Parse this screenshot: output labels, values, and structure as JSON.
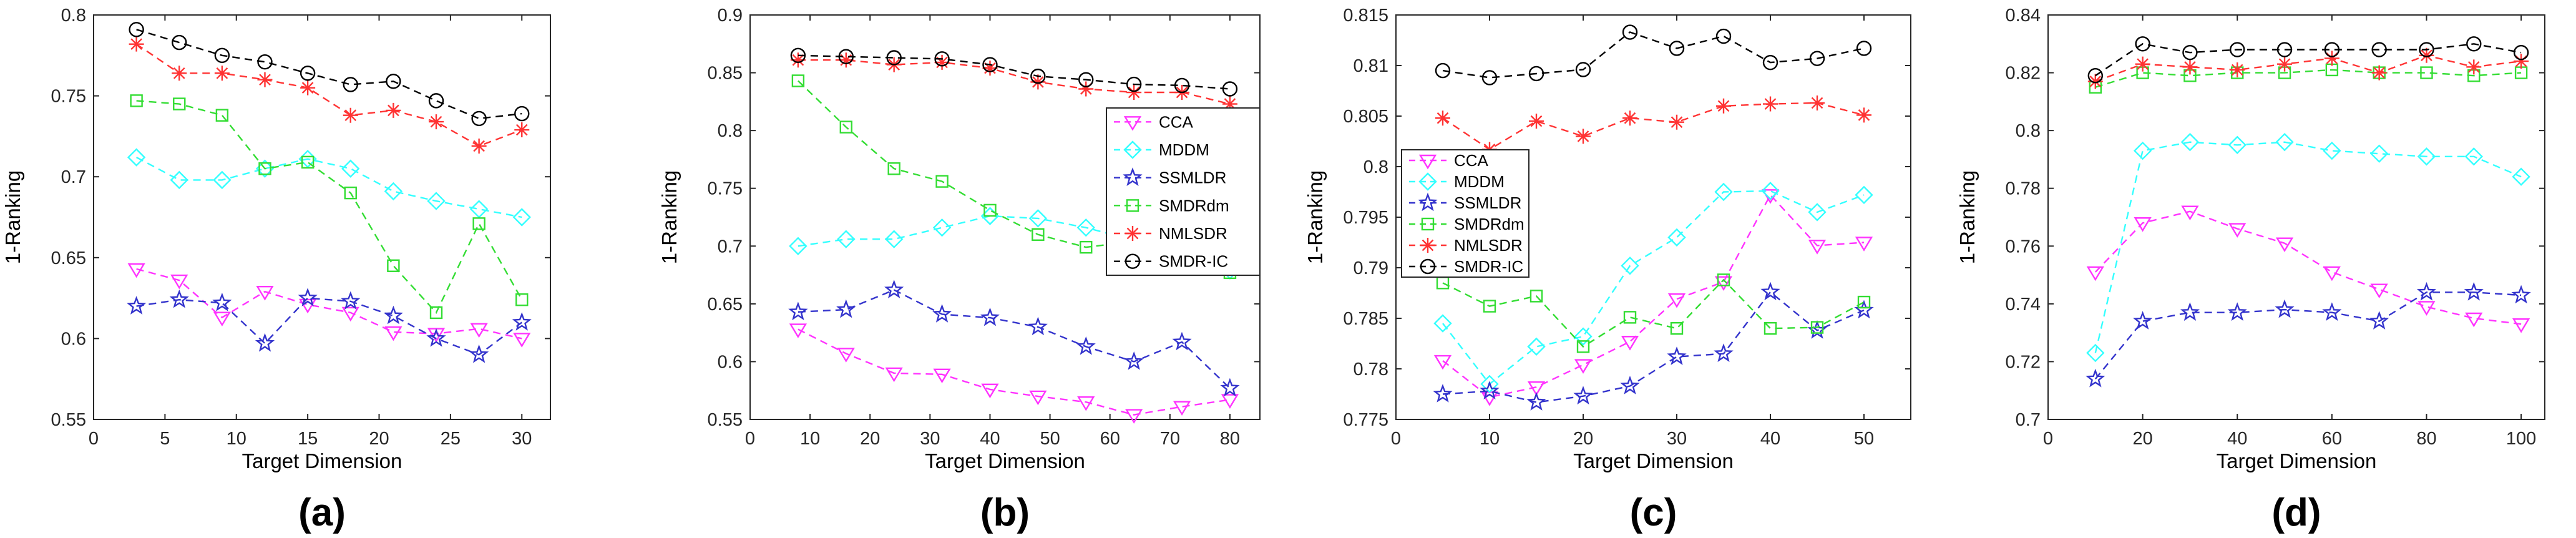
{
  "figure": {
    "markers": {
      "CCA": "triangle-down",
      "MDDM": "diamond",
      "SSMLDR": "star",
      "SMDRdm": "square",
      "NMLSDR": "asterisk",
      "SMDR-IC": "circle"
    },
    "colors": {
      "CCA": "#ff33ff",
      "MDDM": "#33ffff",
      "SSMLDR": "#3333cc",
      "SMDRdm": "#33dd33",
      "NMLSDR": "#ff3333",
      "SMDR-IC": "#000000",
      "axis": "#262626",
      "line_style": "dashed"
    }
  },
  "chart_data": [
    {
      "type": "line",
      "panel_label": "(a)",
      "xlabel": "Target Dimension",
      "ylabel": "1-Ranking",
      "xlim": [
        0,
        32
      ],
      "ylim": [
        0.55,
        0.8
      ],
      "xticks": [
        "0",
        "5",
        "10",
        "15",
        "20",
        "25",
        "30"
      ],
      "yticks": [
        "0.55",
        "0.6",
        "0.65",
        "0.7",
        "0.75",
        "0.8"
      ],
      "x": [
        3,
        6,
        9,
        12,
        15,
        18,
        21,
        24,
        27,
        30
      ],
      "legend_location": "none",
      "series": [
        {
          "name": "CCA",
          "values": [
            0.643,
            0.636,
            0.613,
            0.629,
            0.621,
            0.616,
            0.604,
            0.603,
            0.606,
            0.6
          ]
        },
        {
          "name": "MDDM",
          "values": [
            0.712,
            0.698,
            0.698,
            0.705,
            0.711,
            0.705,
            0.691,
            0.685,
            0.68,
            0.675
          ]
        },
        {
          "name": "SSMLDR",
          "values": [
            0.62,
            0.624,
            0.622,
            0.597,
            0.625,
            0.623,
            0.614,
            0.6,
            0.59,
            0.61
          ]
        },
        {
          "name": "SMDRdm",
          "values": [
            0.747,
            0.745,
            0.738,
            0.705,
            0.709,
            0.69,
            0.645,
            0.616,
            0.671,
            0.624
          ]
        },
        {
          "name": "NMLSDR",
          "values": [
            0.782,
            0.764,
            0.764,
            0.76,
            0.755,
            0.738,
            0.741,
            0.734,
            0.719,
            0.729
          ]
        },
        {
          "name": "SMDR-IC",
          "values": [
            0.791,
            0.783,
            0.775,
            0.771,
            0.764,
            0.757,
            0.759,
            0.747,
            0.736,
            0.739
          ]
        }
      ]
    },
    {
      "type": "line",
      "panel_label": "(b)",
      "xlabel": "Target Dimension",
      "ylabel": "1-Ranking",
      "xlim": [
        0,
        85
      ],
      "ylim": [
        0.55,
        0.9
      ],
      "xticks": [
        "0",
        "10",
        "20",
        "30",
        "40",
        "50",
        "60",
        "70",
        "80"
      ],
      "yticks": [
        "0.55",
        "0.6",
        "0.65",
        "0.7",
        "0.75",
        "0.8",
        "0.85",
        "0.9"
      ],
      "x": [
        8,
        16,
        24,
        32,
        40,
        48,
        56,
        64,
        72,
        80
      ],
      "legend_location": "right",
      "series": [
        {
          "name": "CCA",
          "values": [
            0.628,
            0.607,
            0.59,
            0.589,
            0.576,
            0.57,
            0.565,
            0.554,
            0.561,
            0.567
          ]
        },
        {
          "name": "MDDM",
          "values": [
            0.7,
            0.706,
            0.706,
            0.716,
            0.726,
            0.724,
            0.716,
            0.705,
            0.699,
            0.679
          ]
        },
        {
          "name": "SSMLDR",
          "values": [
            0.643,
            0.645,
            0.662,
            0.641,
            0.638,
            0.63,
            0.613,
            0.6,
            0.617,
            0.577
          ]
        },
        {
          "name": "SMDRdm",
          "values": [
            0.843,
            0.803,
            0.767,
            0.756,
            0.731,
            0.71,
            0.699,
            0.704,
            0.7,
            0.677
          ]
        },
        {
          "name": "NMLSDR",
          "values": [
            0.861,
            0.861,
            0.857,
            0.859,
            0.854,
            0.842,
            0.836,
            0.833,
            0.833,
            0.823
          ]
        },
        {
          "name": "SMDR-IC",
          "values": [
            0.865,
            0.864,
            0.863,
            0.862,
            0.857,
            0.847,
            0.844,
            0.84,
            0.839,
            0.836
          ]
        }
      ],
      "legend": [
        "CCA",
        "MDDM",
        "SSMLDR",
        "SMDRdm",
        "NMLSDR",
        "SMDR-IC"
      ]
    },
    {
      "type": "line",
      "panel_label": "(c)",
      "xlabel": "Target Dimension",
      "ylabel": "1-Ranking",
      "xlim": [
        0,
        55
      ],
      "ylim": [
        0.775,
        0.815
      ],
      "xticks": [
        "0",
        "10",
        "20",
        "30",
        "40",
        "50"
      ],
      "yticks": [
        "0.775",
        "0.78",
        "0.785",
        "0.79",
        "0.795",
        "0.8",
        "0.805",
        "0.81",
        "0.815"
      ],
      "x": [
        5,
        10,
        15,
        20,
        25,
        30,
        35,
        40,
        45,
        50
      ],
      "legend_location": "left",
      "series": [
        {
          "name": "CCA",
          "values": [
            0.7808,
            0.7772,
            0.7782,
            0.7804,
            0.7827,
            0.7869,
            0.7886,
            0.7972,
            0.7922,
            0.7925
          ]
        },
        {
          "name": "MDDM",
          "values": [
            0.7845,
            0.7785,
            0.7822,
            0.7832,
            0.7902,
            0.793,
            0.7975,
            0.7976,
            0.7955,
            0.7972
          ]
        },
        {
          "name": "SSMLDR",
          "values": [
            0.7775,
            0.7778,
            0.7767,
            0.7773,
            0.7783,
            0.7812,
            0.7815,
            0.7876,
            0.7838,
            0.7858
          ]
        },
        {
          "name": "SMDRdm",
          "values": [
            0.7885,
            0.7862,
            0.7872,
            0.7822,
            0.7851,
            0.784,
            0.7888,
            0.784,
            0.7841,
            0.7866
          ]
        },
        {
          "name": "NMLSDR",
          "values": [
            0.8048,
            0.8017,
            0.8045,
            0.803,
            0.8048,
            0.8044,
            0.806,
            0.8062,
            0.8063,
            0.8051
          ]
        },
        {
          "name": "SMDR-IC",
          "values": [
            0.8095,
            0.8088,
            0.8092,
            0.8096,
            0.8133,
            0.8117,
            0.8129,
            0.8103,
            0.8107,
            0.8117
          ]
        }
      ],
      "legend": [
        "CCA",
        "MDDM",
        "SSMLDR",
        "SMDRdm",
        "NMLSDR",
        "SMDR-IC"
      ]
    },
    {
      "type": "line",
      "panel_label": "(d)",
      "xlabel": "Target Dimension",
      "ylabel": "1-Ranking",
      "xlim": [
        0,
        105
      ],
      "ylim": [
        0.7,
        0.84
      ],
      "xticks": [
        "0",
        "20",
        "40",
        "60",
        "80",
        "100"
      ],
      "yticks": [
        "0.7",
        "0.72",
        "0.74",
        "0.76",
        "0.78",
        "0.8",
        "0.82",
        "0.84"
      ],
      "x": [
        10,
        20,
        30,
        40,
        50,
        60,
        70,
        80,
        90,
        100
      ],
      "legend_location": "none",
      "series": [
        {
          "name": "CCA",
          "values": [
            0.751,
            0.768,
            0.772,
            0.766,
            0.761,
            0.751,
            0.745,
            0.739,
            0.735,
            0.733
          ]
        },
        {
          "name": "MDDM",
          "values": [
            0.723,
            0.793,
            0.796,
            0.795,
            0.796,
            0.793,
            0.792,
            0.791,
            0.791,
            0.784
          ]
        },
        {
          "name": "SSMLDR",
          "values": [
            0.714,
            0.734,
            0.737,
            0.737,
            0.738,
            0.737,
            0.734,
            0.744,
            0.744,
            0.743
          ]
        },
        {
          "name": "SMDRdm",
          "values": [
            0.815,
            0.82,
            0.819,
            0.82,
            0.82,
            0.821,
            0.82,
            0.82,
            0.819,
            0.82
          ]
        },
        {
          "name": "NMLSDR",
          "values": [
            0.817,
            0.823,
            0.822,
            0.821,
            0.823,
            0.825,
            0.82,
            0.826,
            0.822,
            0.824
          ]
        },
        {
          "name": "SMDR-IC",
          "values": [
            0.819,
            0.83,
            0.827,
            0.828,
            0.828,
            0.828,
            0.828,
            0.828,
            0.83,
            0.827
          ]
        }
      ]
    }
  ]
}
